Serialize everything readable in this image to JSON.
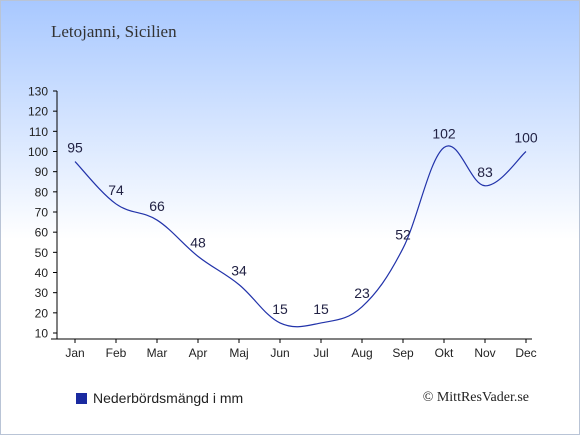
{
  "location_title": "Letojanni, Sicilien",
  "legend_label": "Nederbördsmängd i mm",
  "credit": "© MittResVader.se",
  "colors": {
    "line": "#2233aa",
    "legend": "#1a2aa0",
    "axis": "#000000",
    "label": "#222244"
  },
  "chart_data": {
    "type": "line",
    "categories": [
      "Jan",
      "Feb",
      "Mar",
      "Apr",
      "Maj",
      "Jun",
      "Jul",
      "Aug",
      "Sep",
      "Okt",
      "Nov",
      "Dec"
    ],
    "series": [
      {
        "name": "Nederbördsmängd i mm",
        "values": [
          95,
          74,
          66,
          48,
          34,
          15,
          15,
          23,
          52,
          102,
          83,
          100
        ]
      }
    ],
    "yticks": [
      10,
      20,
      30,
      40,
      50,
      60,
      70,
      80,
      90,
      100,
      110,
      120,
      130
    ],
    "ylim": [
      10,
      130
    ],
    "grid": false,
    "legend_position": "bottom-left"
  }
}
